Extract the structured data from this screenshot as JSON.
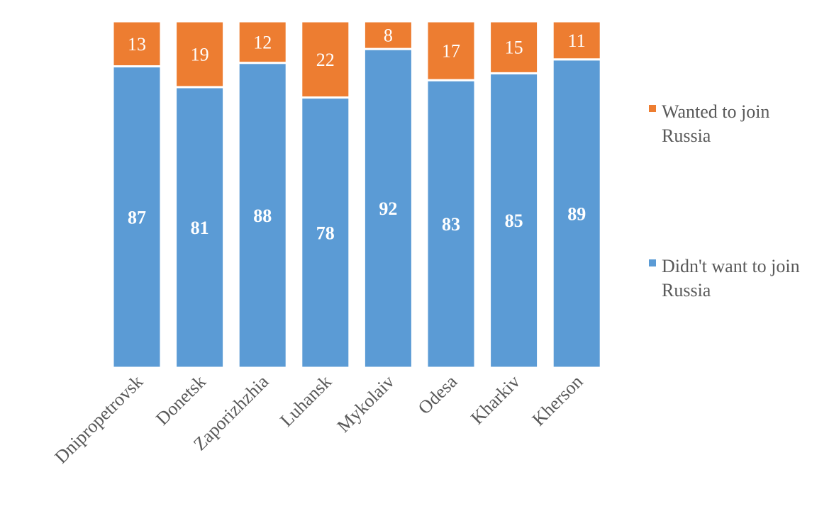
{
  "chart_data": {
    "type": "bar",
    "stacked": true,
    "percent_stacked": true,
    "title": "",
    "xlabel": "",
    "ylabel": "",
    "ylim": [
      0,
      100
    ],
    "grid": false,
    "legend_placement": "right",
    "categories": [
      "Dnipropetrovsk",
      "Donetsk",
      "Zaporizhzhia",
      "Luhansk",
      "Mykolaiv",
      "Odesa",
      "Kharkiv",
      "Kherson"
    ],
    "series": [
      {
        "name": "Didn't want to join Russia",
        "color": "#5B9BD5",
        "values": [
          87,
          81,
          88,
          78,
          92,
          83,
          85,
          89
        ]
      },
      {
        "name": "Wanted to join Russia",
        "color": "#ED7D31",
        "values": [
          13,
          19,
          12,
          22,
          8,
          17,
          15,
          11
        ]
      }
    ],
    "legend": [
      {
        "series": 1,
        "lines": [
          "Wanted to join",
          "Russia"
        ]
      },
      {
        "series": 0,
        "lines": [
          "Didn't want to join",
          "Russia"
        ]
      }
    ]
  }
}
